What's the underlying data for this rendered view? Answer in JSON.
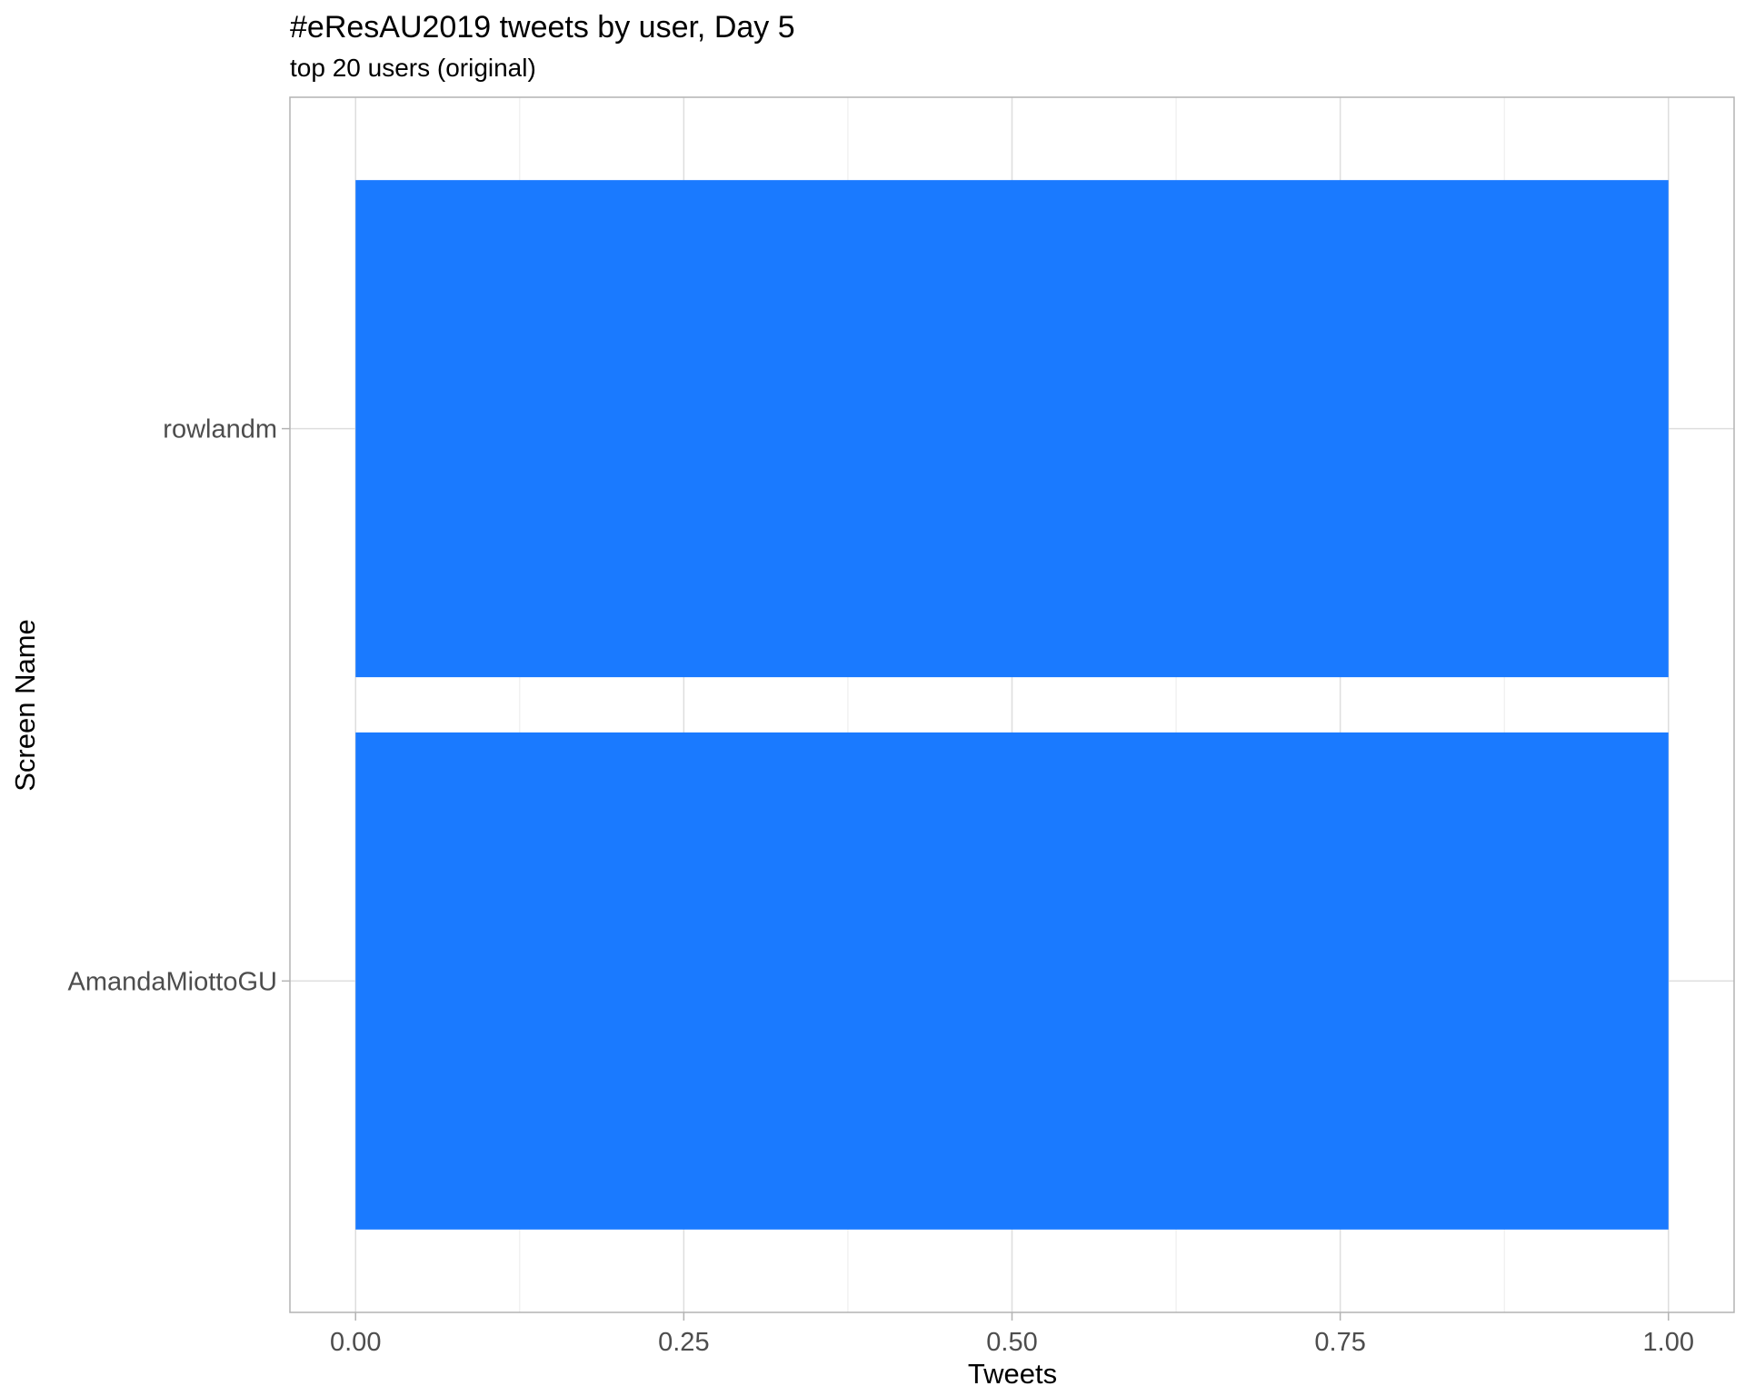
{
  "chart_data": {
    "type": "bar",
    "orientation": "horizontal",
    "title": "#eResAU2019 tweets by user, Day 5",
    "subtitle": "top 20 users (original)",
    "xlabel": "Tweets",
    "ylabel": "Screen Name",
    "categories": [
      "rowlandm",
      "AmandaMiottoGU"
    ],
    "values": [
      1,
      1
    ],
    "xlim": [
      0,
      1
    ],
    "xticks": [
      "0.00",
      "0.25",
      "0.50",
      "0.75",
      "1.00"
    ],
    "grid": true,
    "legend": "none",
    "bar_color": "#1a7aff"
  }
}
